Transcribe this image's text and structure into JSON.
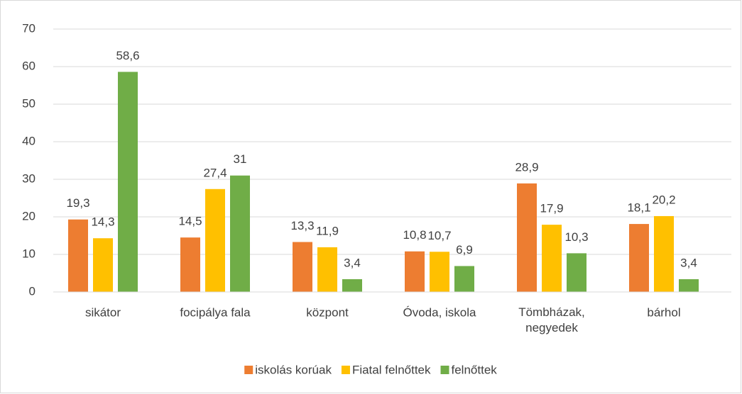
{
  "chart_data": {
    "type": "bar",
    "categories": [
      "sikátor",
      "focipálya fala",
      "központ",
      "Óvoda, iskola",
      "Tömbházak, negyedek",
      "bárhol"
    ],
    "series": [
      {
        "name": "iskolás korúak",
        "color": "#ed7d31",
        "values": [
          19.3,
          14.5,
          13.3,
          10.8,
          28.9,
          18.1
        ],
        "value_labels": [
          "19,3",
          "14,5",
          "13,3",
          "10,8",
          "28,9",
          "18,1"
        ]
      },
      {
        "name": "Fiatal felnőttek",
        "color": "#ffc000",
        "values": [
          14.3,
          27.4,
          11.9,
          10.7,
          17.9,
          20.2
        ],
        "value_labels": [
          "14,3",
          "27,4",
          "11,9",
          "10,7",
          "17,9",
          "20,2"
        ]
      },
      {
        "name": "felnőttek",
        "color": "#70ad47",
        "values": [
          58.6,
          31,
          3.4,
          6.9,
          10.3,
          3.4
        ],
        "value_labels": [
          "58,6",
          "31",
          "3,4",
          "6,9",
          "10,3",
          "3,4"
        ]
      }
    ],
    "ylim": [
      0,
      70
    ],
    "yticks": [
      0,
      10,
      20,
      30,
      40,
      50,
      60,
      70
    ],
    "grid": true,
    "legend": "bottom"
  }
}
